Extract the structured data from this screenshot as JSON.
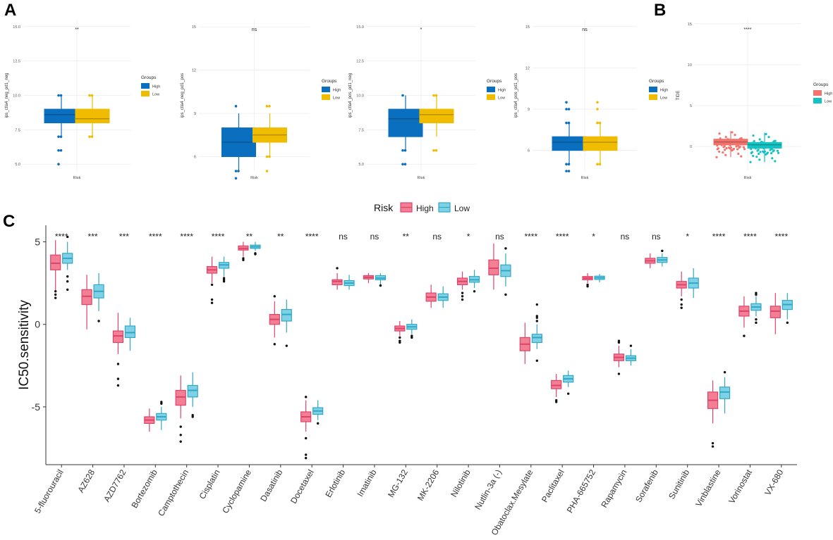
{
  "panel_letters": [
    "A",
    "B",
    "C"
  ],
  "chart_data": [
    {
      "id": "A1",
      "type": "boxplot",
      "panel": "A",
      "xlabel": "Risk",
      "ylabel": "ips_ctla4_neg_pd1_neg",
      "ylim": [
        4.5,
        15.5
      ],
      "yticks": [
        5.0,
        7.5,
        10.0,
        12.5,
        15.0
      ],
      "ytick_labels": [
        "5.0",
        "7.5",
        "10.0",
        "12.5",
        "15.0"
      ],
      "significance": "**",
      "legend_title": "Groups",
      "legend": [
        "High",
        "Low"
      ],
      "series": [
        {
          "name": "High",
          "q1": 8,
          "median": 8.6,
          "q3": 9,
          "whisker_low": 7,
          "whisker_high": 10,
          "outliers": [
            5,
            6,
            6,
            7,
            7,
            10,
            10
          ]
        },
        {
          "name": "Low",
          "q1": 8,
          "median": 8.3,
          "q3": 9,
          "whisker_low": 7,
          "whisker_high": 10,
          "outliers": [
            7,
            7,
            10,
            10
          ]
        }
      ]
    },
    {
      "id": "A2",
      "type": "boxplot",
      "panel": "A",
      "xlabel": "Risk",
      "ylabel": "ips_ctla4_neg_pd1_pos",
      "ylim": [
        5,
        15.5
      ],
      "yticks": [
        6,
        9,
        12,
        15
      ],
      "ytick_labels": [
        "6",
        "9",
        "12",
        "15"
      ],
      "significance": "ns",
      "legend_title": "Groups",
      "legend": [
        "High",
        "Low"
      ],
      "series": [
        {
          "name": "High",
          "q1": 6,
          "median": 7,
          "q3": 8,
          "whisker_low": 5,
          "whisker_high": 9,
          "outliers": [
            4.5,
            5,
            5,
            9.5
          ]
        },
        {
          "name": "Low",
          "q1": 7,
          "median": 7.5,
          "q3": 8,
          "whisker_low": 6,
          "whisker_high": 9,
          "outliers": [
            5,
            6,
            6,
            9.5,
            9.5
          ]
        }
      ]
    },
    {
      "id": "A3",
      "type": "boxplot",
      "panel": "A",
      "xlabel": "Risk",
      "ylabel": "ips_ctla4_pos_pd1_neg",
      "ylim": [
        4.5,
        15.5
      ],
      "yticks": [
        5.0,
        7.5,
        10.0,
        12.5,
        15.0
      ],
      "ytick_labels": [
        "5.0",
        "7.5",
        "10.0",
        "12.5",
        "15.0"
      ],
      "significance": "*",
      "legend_title": "Groups",
      "legend": [
        "High",
        "Low"
      ],
      "series": [
        {
          "name": "High",
          "q1": 7,
          "median": 8.3,
          "q3": 9,
          "whisker_low": 6,
          "whisker_high": 10,
          "outliers": [
            5,
            5,
            6,
            6,
            10
          ]
        },
        {
          "name": "Low",
          "q1": 8,
          "median": 8.6,
          "q3": 9,
          "whisker_low": 7,
          "whisker_high": 10,
          "outliers": [
            6,
            6,
            10,
            10
          ]
        }
      ]
    },
    {
      "id": "A4",
      "type": "boxplot",
      "panel": "A",
      "xlabel": "Risk",
      "ylabel": "ips_ctla4_pos_pd1_pos",
      "ylim": [
        4.5,
        15.5
      ],
      "yticks": [
        6,
        9,
        12,
        15
      ],
      "ytick_labels": [
        "6",
        "9",
        "12",
        "15"
      ],
      "significance": "ns",
      "legend_title": "Groups",
      "legend": [
        "High",
        "Low"
      ],
      "series": [
        {
          "name": "High",
          "q1": 6,
          "median": 6.6,
          "q3": 7,
          "whisker_low": 5,
          "whisker_high": 8,
          "outliers": [
            4.5,
            4.5,
            5,
            5,
            8,
            8,
            9,
            9,
            9.5
          ]
        },
        {
          "name": "Low",
          "q1": 6,
          "median": 6.6,
          "q3": 7,
          "whisker_low": 5,
          "whisker_high": 8,
          "outliers": [
            5,
            5,
            8,
            8,
            9,
            9.5
          ]
        }
      ]
    },
    {
      "id": "B",
      "type": "boxplot",
      "panel": "B",
      "xlabel": "Risk",
      "ylabel": "TIDE",
      "ylim": [
        -3,
        15.5
      ],
      "yticks": [
        0,
        5,
        10,
        15
      ],
      "ytick_labels": [
        "0",
        "5",
        "10",
        "15"
      ],
      "significance": "****",
      "legend_title": "Groups",
      "legend": [
        "High",
        "Low"
      ],
      "series": [
        {
          "name": "High",
          "q1": 0.2,
          "median": 0.55,
          "q3": 0.9,
          "whisker_low": -1.3,
          "whisker_high": 1.9,
          "outliers": []
        },
        {
          "name": "Low",
          "q1": -0.2,
          "median": 0.2,
          "q3": 0.5,
          "whisker_low": -1.9,
          "whisker_high": 1.7,
          "outliers": []
        }
      ]
    },
    {
      "id": "C",
      "type": "boxplot",
      "panel": "C",
      "ylabel": "IC50.sensitivity",
      "ylim": [
        -8.5,
        6
      ],
      "yticks": [
        5,
        0,
        -5
      ],
      "ytick_labels": [
        "5",
        "0",
        "-5"
      ],
      "legend_title": "Risk",
      "legend": [
        "High",
        "Low"
      ],
      "categories": [
        "5-fluorouracil",
        "AZ628",
        "AZD7762",
        "Bortezomib",
        "Camptothecin",
        "Cisplatin",
        "Cyclopamine",
        "Dasatinib",
        "Docetaxel",
        "Erlotinib",
        "Imatinib",
        "MG-132",
        "MK-2206",
        "Nilotinib",
        "Nutlin-3a (-)",
        "Obatoclax.Mesylate",
        "Paclitaxel",
        "PHA-665752",
        "Rapamycin",
        "Sorafenib",
        "Sunitinib",
        "Vinblastine",
        "Vorinostat",
        "VX-680"
      ],
      "significance": [
        "****",
        "***",
        "***",
        "****",
        "****",
        "****",
        "**",
        "**",
        "****",
        "ns",
        "ns",
        "**",
        "ns",
        "*",
        "ns",
        "****",
        "****",
        "*",
        "ns",
        "ns",
        "*",
        "****",
        "****",
        "****"
      ],
      "series": [
        {
          "name": "High",
          "boxes": [
            {
              "q1": 3.3,
              "median": 3.7,
              "q3": 4.2,
              "whisker_low": 2.0,
              "whisker_high": 5.1,
              "outliers": [
                1.6,
                1.8,
                2.0
              ]
            },
            {
              "q1": 1.2,
              "median": 1.7,
              "q3": 2.1,
              "whisker_low": -0.3,
              "whisker_high": 3.0,
              "outliers": []
            },
            {
              "q1": -1.1,
              "median": -0.7,
              "q3": -0.4,
              "whisker_low": -1.8,
              "whisker_high": 0.7,
              "outliers": [
                -2.4,
                -3.3,
                -3.7
              ]
            },
            {
              "q1": -6.0,
              "median": -5.8,
              "q3": -5.6,
              "whisker_low": -6.5,
              "whisker_high": -5.1,
              "outliers": []
            },
            {
              "q1": -4.9,
              "median": -4.4,
              "q3": -4.0,
              "whisker_low": -5.7,
              "whisker_high": -3.1,
              "outliers": [
                -6.2,
                -6.7,
                -7.1
              ]
            },
            {
              "q1": 3.1,
              "median": 3.3,
              "q3": 3.5,
              "whisker_low": 2.5,
              "whisker_high": 4.1,
              "outliers": [
                2.4,
                1.5,
                1.3
              ]
            },
            {
              "q1": 4.5,
              "median": 4.6,
              "q3": 4.75,
              "whisker_low": 4.1,
              "whisker_high": 5.0,
              "outliers": [
                4.0,
                3.9
              ]
            },
            {
              "q1": 0.0,
              "median": 0.3,
              "q3": 0.6,
              "whisker_low": -0.8,
              "whisker_high": 1.4,
              "outliers": [
                1.7,
                -1.2
              ]
            },
            {
              "q1": -5.9,
              "median": -5.6,
              "q3": -5.3,
              "whisker_low": -6.5,
              "whisker_high": -4.6,
              "outliers": [
                -4.4,
                -6.9,
                -7.9,
                -8.1
              ]
            },
            {
              "q1": 2.4,
              "median": 2.6,
              "q3": 2.7,
              "whisker_low": 2.1,
              "whisker_high": 3.1,
              "outliers": [
                3.4
              ]
            },
            {
              "q1": 2.75,
              "median": 2.85,
              "q3": 2.95,
              "whisker_low": 2.5,
              "whisker_high": 3.1,
              "outliers": []
            },
            {
              "q1": -0.4,
              "median": -0.25,
              "q3": -0.1,
              "whisker_low": -0.7,
              "whisker_high": 0.2,
              "outliers": [
                -0.8,
                -1.0,
                -1.1
              ]
            },
            {
              "q1": 1.4,
              "median": 1.65,
              "q3": 1.9,
              "whisker_low": 1.0,
              "whisker_high": 2.4,
              "outliers": []
            },
            {
              "q1": 2.4,
              "median": 2.6,
              "q3": 2.8,
              "whisker_low": 2.1,
              "whisker_high": 3.2,
              "outliers": [
                1.9,
                1.7,
                1.5
              ]
            },
            {
              "q1": 3.0,
              "median": 3.4,
              "q3": 3.9,
              "whisker_low": 2.1,
              "whisker_high": 4.9,
              "outliers": []
            },
            {
              "q1": -1.6,
              "median": -1.2,
              "q3": -0.8,
              "whisker_low": -2.4,
              "whisker_high": 0.1,
              "outliers": []
            },
            {
              "q1": -3.9,
              "median": -3.7,
              "q3": -3.4,
              "whisker_low": -4.4,
              "whisker_high": -3.0,
              "outliers": [
                -4.6,
                -4.7
              ]
            },
            {
              "q1": 2.7,
              "median": 2.8,
              "q3": 2.9,
              "whisker_low": 2.5,
              "whisker_high": 3.1,
              "outliers": [
                2.4,
                2.3
              ]
            },
            {
              "q1": -2.2,
              "median": -2.0,
              "q3": -1.8,
              "whisker_low": -2.6,
              "whisker_high": -1.3,
              "outliers": [
                -1.0,
                -1.1,
                -3.0
              ]
            },
            {
              "q1": 3.7,
              "median": 3.85,
              "q3": 4.0,
              "whisker_low": 3.4,
              "whisker_high": 4.3,
              "outliers": []
            },
            {
              "q1": 2.2,
              "median": 2.4,
              "q3": 2.6,
              "whisker_low": 1.7,
              "whisker_high": 3.2,
              "outliers": [
                1.5,
                1.2,
                1.0
              ]
            },
            {
              "q1": -5.1,
              "median": -4.6,
              "q3": -4.1,
              "whisker_low": -6.0,
              "whisker_high": -3.4,
              "outliers": [
                -7.2,
                -7.4
              ]
            },
            {
              "q1": 0.5,
              "median": 0.8,
              "q3": 1.1,
              "whisker_low": -0.2,
              "whisker_high": 1.7,
              "outliers": [
                -0.7
              ]
            },
            {
              "q1": 0.4,
              "median": 0.8,
              "q3": 1.1,
              "whisker_low": -0.6,
              "whisker_high": 1.9,
              "outliers": []
            }
          ]
        },
        {
          "name": "Low",
          "boxes": [
            {
              "q1": 3.7,
              "median": 4.0,
              "q3": 4.3,
              "whisker_low": 3.3,
              "whisker_high": 5.0,
              "outliers": [
                5.3,
                2.9,
                2.6,
                2.1
              ]
            },
            {
              "q1": 1.6,
              "median": 2.0,
              "q3": 2.4,
              "whisker_low": 0.8,
              "whisker_high": 3.1,
              "outliers": [
                0.2
              ]
            },
            {
              "q1": -0.8,
              "median": -0.5,
              "q3": -0.1,
              "whisker_low": -1.6,
              "whisker_high": 0.4,
              "outliers": []
            },
            {
              "q1": -5.8,
              "median": -5.6,
              "q3": -5.4,
              "whisker_low": -6.4,
              "whisker_high": -5.0,
              "outliers": [
                -4.8,
                -4.7
              ]
            },
            {
              "q1": -4.4,
              "median": -4.0,
              "q3": -3.7,
              "whisker_low": -5.0,
              "whisker_high": -2.9,
              "outliers": [
                -5.5,
                -5.6
              ]
            },
            {
              "q1": 3.4,
              "median": 3.6,
              "q3": 3.75,
              "whisker_low": 2.9,
              "whisker_high": 4.1,
              "outliers": [
                2.8,
                2.7,
                2.6
              ]
            },
            {
              "q1": 4.6,
              "median": 4.7,
              "q3": 4.8,
              "whisker_low": 4.45,
              "whisker_high": 5.0,
              "outliers": [
                4.3,
                4.25
              ]
            },
            {
              "q1": 0.2,
              "median": 0.6,
              "q3": 0.9,
              "whisker_low": -0.5,
              "whisker_high": 1.5,
              "outliers": [
                -1.3
              ]
            },
            {
              "q1": -5.45,
              "median": -5.25,
              "q3": -5.05,
              "whisker_low": -5.8,
              "whisker_high": -4.6,
              "outliers": [
                -6.0
              ]
            },
            {
              "q1": 2.35,
              "median": 2.5,
              "q3": 2.65,
              "whisker_low": 2.1,
              "whisker_high": 3.0,
              "outliers": []
            },
            {
              "q1": 2.7,
              "median": 2.8,
              "q3": 2.95,
              "whisker_low": 2.4,
              "whisker_high": 3.1,
              "outliers": [
                2.35
              ]
            },
            {
              "q1": -0.3,
              "median": -0.15,
              "q3": 0.0,
              "whisker_low": -0.6,
              "whisker_high": 0.3,
              "outliers": [
                -0.7,
                -0.8
              ]
            },
            {
              "q1": 1.45,
              "median": 1.65,
              "q3": 1.85,
              "whisker_low": 1.0,
              "whisker_high": 2.3,
              "outliers": []
            },
            {
              "q1": 2.55,
              "median": 2.7,
              "q3": 2.9,
              "whisker_low": 2.2,
              "whisker_high": 3.3,
              "outliers": [
                2.0
              ]
            },
            {
              "q1": 2.9,
              "median": 3.25,
              "q3": 3.6,
              "whisker_low": 2.3,
              "whisker_high": 4.3,
              "outliers": [
                4.6,
                1.8
              ]
            },
            {
              "q1": -1.1,
              "median": -0.8,
              "q3": -0.6,
              "whisker_low": -1.5,
              "whisker_high": 0.0,
              "outliers": [
                0.5,
                0.4,
                0.2,
                1.2,
                -2.2
              ]
            },
            {
              "q1": -3.5,
              "median": -3.3,
              "q3": -3.1,
              "whisker_low": -3.8,
              "whisker_high": -2.8,
              "outliers": [
                -4.2
              ]
            },
            {
              "q1": 2.72,
              "median": 2.82,
              "q3": 2.92,
              "whisker_low": 2.55,
              "whisker_high": 3.05,
              "outliers": []
            },
            {
              "q1": -2.2,
              "median": -2.05,
              "q3": -1.9,
              "whisker_low": -2.5,
              "whisker_high": -1.5,
              "outliers": [
                -1.3
              ]
            },
            {
              "q1": 3.75,
              "median": 3.9,
              "q3": 4.05,
              "whisker_low": 3.5,
              "whisker_high": 4.3,
              "outliers": [
                4.45
              ]
            },
            {
              "q1": 2.2,
              "median": 2.5,
              "q3": 2.8,
              "whisker_low": 1.6,
              "whisker_high": 3.4,
              "outliers": []
            },
            {
              "q1": -4.5,
              "median": -4.1,
              "q3": -3.8,
              "whisker_low": -5.4,
              "whisker_high": -3.2,
              "outliers": [
                -2.9
              ]
            },
            {
              "q1": 0.85,
              "median": 1.05,
              "q3": 1.25,
              "whisker_low": 0.5,
              "whisker_high": 1.7,
              "outliers": [
                1.9,
                1.8,
                0.3,
                0.1
              ]
            },
            {
              "q1": 0.9,
              "median": 1.2,
              "q3": 1.45,
              "whisker_low": 0.3,
              "whisker_high": 1.9,
              "outliers": [
                0.1
              ]
            }
          ]
        }
      ]
    }
  ],
  "colors": {
    "a_high": "#0b6fc0",
    "a_low": "#f0bc00",
    "b_high": "#f2736c",
    "b_low": "#14c2c2",
    "c_high_fill": "#f27f94",
    "c_high_line": "#e0436a",
    "c_low_fill": "#7fd2e6",
    "c_low_line": "#2fa8c6",
    "grid": "#ececec",
    "axis": "#555555"
  }
}
